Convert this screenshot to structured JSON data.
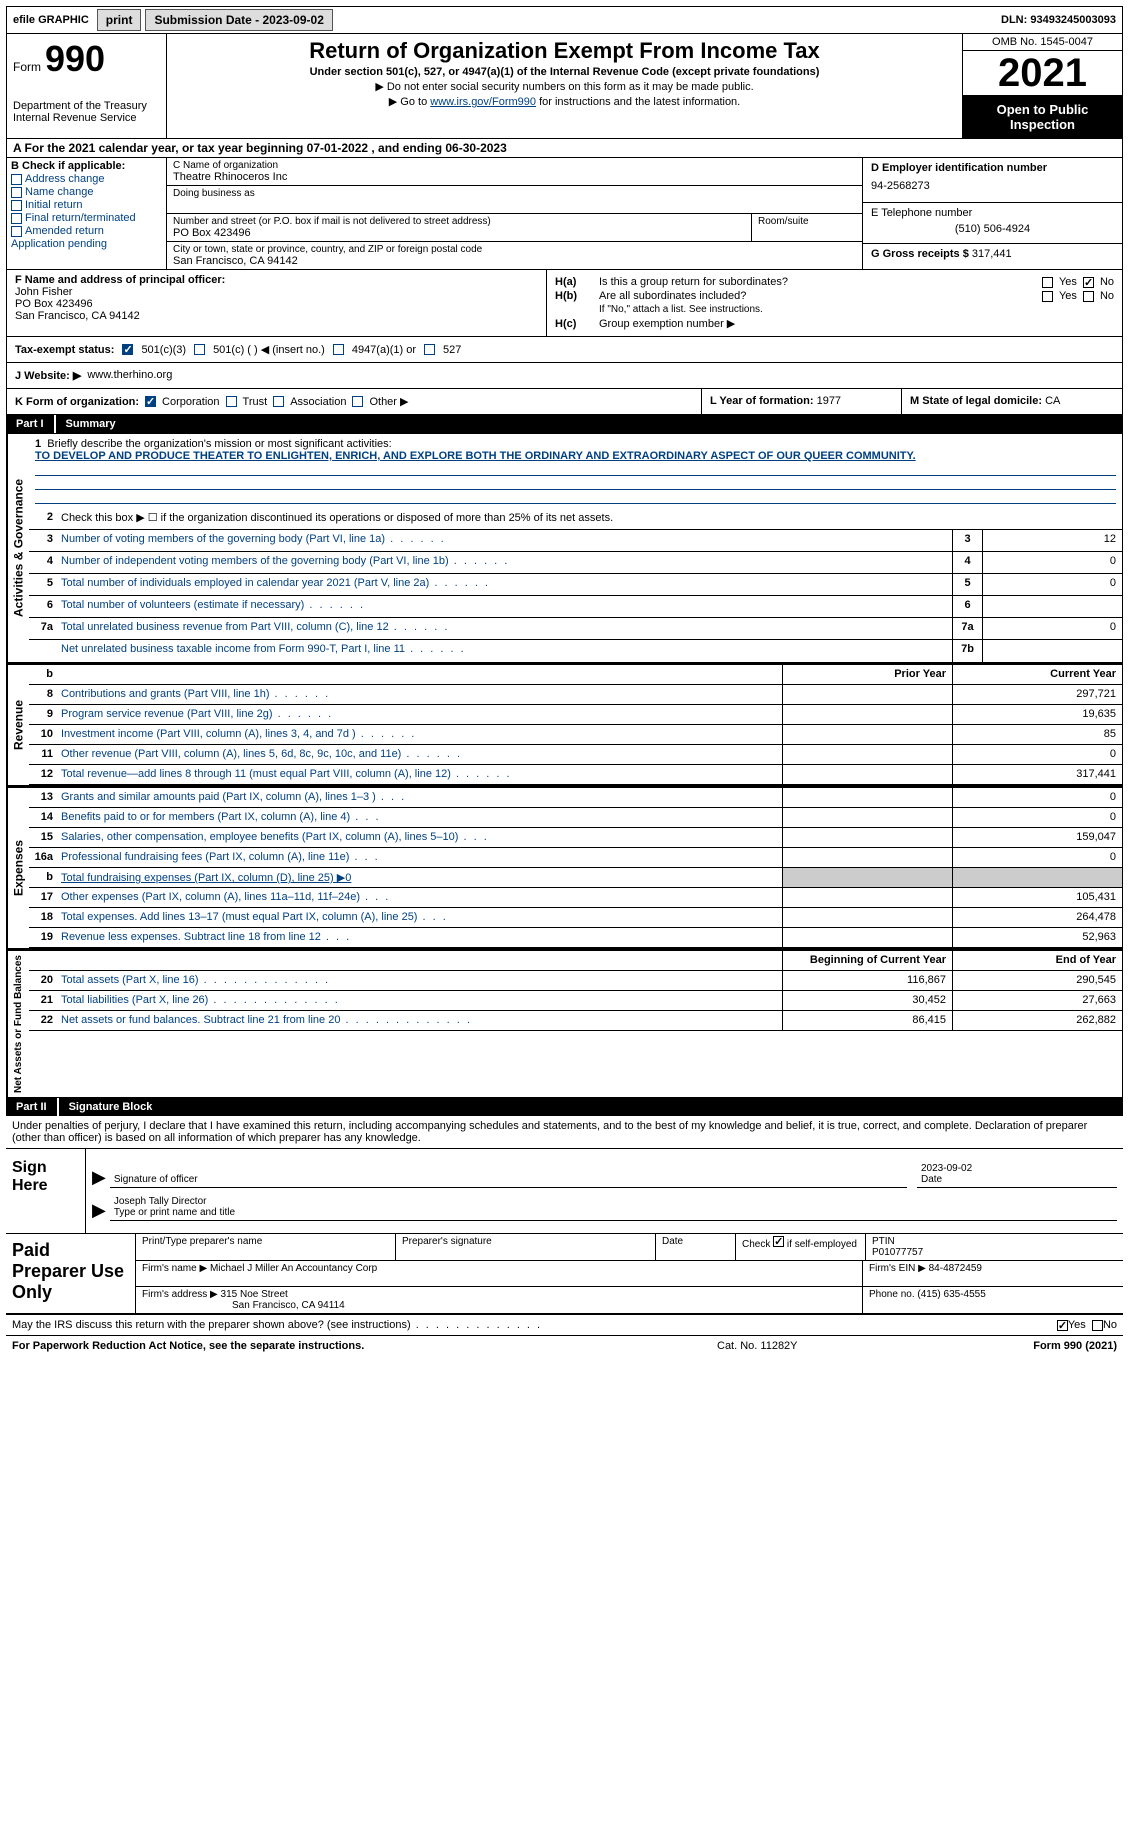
{
  "topbar": {
    "efile": "efile GRAPHIC",
    "print": "print",
    "submission_label": "Submission Date - 2023-09-02",
    "dln": "DLN: 93493245003093"
  },
  "header": {
    "form_word": "Form",
    "form_num": "990",
    "title": "Return of Organization Exempt From Income Tax",
    "sub": "Under section 501(c), 527, or 4947(a)(1) of the Internal Revenue Code (except private foundations)",
    "note1": "▶ Do not enter social security numbers on this form as it may be made public.",
    "note2_pre": "▶ Go to ",
    "note2_link": "www.irs.gov/Form990",
    "note2_post": " for instructions and the latest information.",
    "dept1": "Department of the Treasury",
    "dept2": "Internal Revenue Service",
    "omb": "OMB No. 1545-0047",
    "year": "2021",
    "inspect": "Open to Public Inspection"
  },
  "period": {
    "line": "A For the 2021 calendar year, or tax year beginning 07-01-2022   , and ending 06-30-2023"
  },
  "boxB": {
    "title": "B Check if applicable:",
    "items": [
      "Address change",
      "Name change",
      "Initial return",
      "Final return/terminated",
      "Amended return",
      "Application pending"
    ]
  },
  "boxC": {
    "label": "C Name of organization",
    "name": "Theatre Rhinoceros Inc",
    "dba_label": "Doing business as",
    "addr_label": "Number and street (or P.O. box if mail is not delivered to street address)",
    "room_label": "Room/suite",
    "addr": "PO Box 423496",
    "city_label": "City or town, state or province, country, and ZIP or foreign postal code",
    "city": "San Francisco, CA  94142"
  },
  "boxD": {
    "label": "D Employer identification number",
    "ein": "94-2568273",
    "tel_label": "E Telephone number",
    "tel": "(510) 506-4924",
    "gross_label": "G Gross receipts $",
    "gross": "317,441"
  },
  "boxF": {
    "label": "F Name and address of principal officer:",
    "name": "John Fisher",
    "addr": "PO Box 423496",
    "city": "San Francisco, CA  94142"
  },
  "boxH": {
    "a": "Is this a group return for subordinates?",
    "b": "Are all subordinates included?",
    "b_note": "If \"No,\" attach a list. See instructions.",
    "c": "Group exemption number ▶"
  },
  "boxI": {
    "label": "Tax-exempt status:",
    "opts": [
      "501(c)(3)",
      "501(c) (  ) ◀ (insert no.)",
      "4947(a)(1) or",
      "527"
    ]
  },
  "boxJ": {
    "label": "J   Website: ▶",
    "val": "www.therhino.org"
  },
  "boxK": {
    "label": "K Form of organization:",
    "opts": [
      "Corporation",
      "Trust",
      "Association",
      "Other ▶"
    ]
  },
  "boxL": {
    "label": "L Year of formation:",
    "val": "1977"
  },
  "boxM": {
    "label": "M State of legal domicile:",
    "val": "CA"
  },
  "part1": {
    "num": "Part I",
    "title": "Summary"
  },
  "summary": {
    "l1_label": "Briefly describe the organization's mission or most significant activities:",
    "l1_text": "TO DEVELOP AND PRODUCE THEATER TO ENLIGHTEN, ENRICH, AND EXPLORE BOTH THE ORDINARY AND EXTRAORDINARY ASPECT OF OUR QUEER COMMUNITY.",
    "l2": "Check this box ▶ ☐  if the organization discontinued its operations or disposed of more than 25% of its net assets.",
    "rows_ag": [
      {
        "n": "3",
        "t": "Number of voting members of the governing body (Part VI, line 1a)",
        "box": "3",
        "v": "12"
      },
      {
        "n": "4",
        "t": "Number of independent voting members of the governing body (Part VI, line 1b)",
        "box": "4",
        "v": "0"
      },
      {
        "n": "5",
        "t": "Total number of individuals employed in calendar year 2021 (Part V, line 2a)",
        "box": "5",
        "v": "0"
      },
      {
        "n": "6",
        "t": "Total number of volunteers (estimate if necessary)",
        "box": "6",
        "v": ""
      },
      {
        "n": "7a",
        "t": "Total unrelated business revenue from Part VIII, column (C), line 12",
        "box": "7a",
        "v": "0"
      },
      {
        "n": "",
        "t": "Net unrelated business taxable income from Form 990-T, Part I, line 11",
        "box": "7b",
        "v": ""
      }
    ],
    "prior_head": "Prior Year",
    "curr_head": "Current Year",
    "rev": [
      {
        "n": "8",
        "t": "Contributions and grants (Part VIII, line 1h)",
        "p": "",
        "c": "297,721"
      },
      {
        "n": "9",
        "t": "Program service revenue (Part VIII, line 2g)",
        "p": "",
        "c": "19,635"
      },
      {
        "n": "10",
        "t": "Investment income (Part VIII, column (A), lines 3, 4, and 7d )",
        "p": "",
        "c": "85"
      },
      {
        "n": "11",
        "t": "Other revenue (Part VIII, column (A), lines 5, 6d, 8c, 9c, 10c, and 11e)",
        "p": "",
        "c": "0"
      },
      {
        "n": "12",
        "t": "Total revenue—add lines 8 through 11 (must equal Part VIII, column (A), line 12)",
        "p": "",
        "c": "317,441"
      }
    ],
    "exp": [
      {
        "n": "13",
        "t": "Grants and similar amounts paid (Part IX, column (A), lines 1–3 )",
        "p": "",
        "c": "0"
      },
      {
        "n": "14",
        "t": "Benefits paid to or for members (Part IX, column (A), line 4)",
        "p": "",
        "c": "0"
      },
      {
        "n": "15",
        "t": "Salaries, other compensation, employee benefits (Part IX, column (A), lines 5–10)",
        "p": "",
        "c": "159,047"
      },
      {
        "n": "16a",
        "t": "Professional fundraising fees (Part IX, column (A), line 11e)",
        "p": "",
        "c": "0"
      },
      {
        "n": "b",
        "t": "Total fundraising expenses (Part IX, column (D), line 25) ▶0",
        "shade": true
      },
      {
        "n": "17",
        "t": "Other expenses (Part IX, column (A), lines 11a–11d, 11f–24e)",
        "p": "",
        "c": "105,431"
      },
      {
        "n": "18",
        "t": "Total expenses. Add lines 13–17 (must equal Part IX, column (A), line 25)",
        "p": "",
        "c": "264,478"
      },
      {
        "n": "19",
        "t": "Revenue less expenses. Subtract line 18 from line 12",
        "p": "",
        "c": "52,963"
      }
    ],
    "na_head_p": "Beginning of Current Year",
    "na_head_c": "End of Year",
    "na": [
      {
        "n": "20",
        "t": "Total assets (Part X, line 16)",
        "p": "116,867",
        "c": "290,545"
      },
      {
        "n": "21",
        "t": "Total liabilities (Part X, line 26)",
        "p": "30,452",
        "c": "27,663"
      },
      {
        "n": "22",
        "t": "Net assets or fund balances. Subtract line 21 from line 20",
        "p": "86,415",
        "c": "262,882"
      }
    ],
    "side_ag": "Activities & Governance",
    "side_rev": "Revenue",
    "side_exp": "Expenses",
    "side_na": "Net Assets or Fund Balances"
  },
  "part2": {
    "num": "Part II",
    "title": "Signature Block"
  },
  "sig": {
    "intro": "Under penalties of perjury, I declare that I have examined this return, including accompanying schedules and statements, and to the best of my knowledge and belief, it is true, correct, and complete. Declaration of preparer (other than officer) is based on all information of which preparer has any knowledge.",
    "sign_here": "Sign Here",
    "sig_label": "Signature of officer",
    "date": "2023-09-02",
    "date_label": "Date",
    "name": "Joseph Tally  Director",
    "name_label": "Type or print name and title"
  },
  "prep": {
    "title": "Paid Preparer Use Only",
    "h1": "Print/Type preparer's name",
    "h2": "Preparer's signature",
    "h3": "Date",
    "h4_pre": "Check",
    "h4_post": "if self-employed",
    "h5": "PTIN",
    "ptin": "P01077757",
    "firm_label": "Firm's name   ▶",
    "firm": "Michael J Miller An Accountancy Corp",
    "ein_label": "Firm's EIN ▶",
    "ein": "84-4872459",
    "addr_label": "Firm's address ▶",
    "addr": "315 Noe Street",
    "city": "San Francisco, CA  94114",
    "phone_label": "Phone no.",
    "phone": "(415) 635-4555"
  },
  "footer": {
    "discuss": "May the IRS discuss this return with the preparer shown above? (see instructions)",
    "paperwork": "For Paperwork Reduction Act Notice, see the separate instructions.",
    "cat": "Cat. No. 11282Y",
    "form": "Form 990 (2021)"
  },
  "yn": {
    "yes": "Yes",
    "no": "No"
  }
}
